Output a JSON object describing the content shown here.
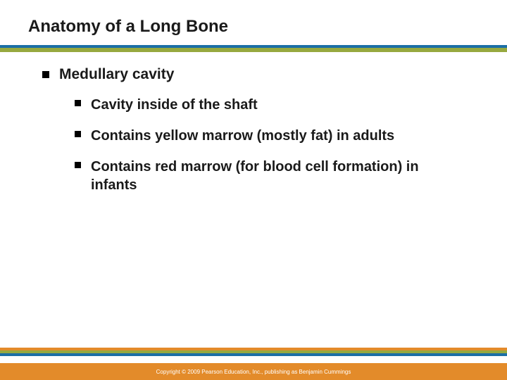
{
  "title": "Anatomy of a Long Bone",
  "title_underline": {
    "top_color": "#1b6fa6",
    "bottom_color": "#97a93f"
  },
  "bullets": {
    "level1": {
      "text": "Medullary cavity",
      "marker_color": "#000000"
    },
    "level2": [
      {
        "text": "Cavity inside of the shaft"
      },
      {
        "text": "Contains yellow marrow (mostly fat) in adults"
      },
      {
        "text": "Contains red marrow (for blood cell formation) in infants"
      }
    ]
  },
  "text_color": "#1a1a1a",
  "fontsize": {
    "title": 24,
    "l1": 21,
    "l2": 20
  },
  "footer_stripes": [
    "#e38b2a",
    "#97a93f",
    "#1b6fa6"
  ],
  "footer": {
    "bg": "#e38b2a",
    "text": "Copyright © 2009 Pearson Education, Inc., publishing as Benjamin Cummings"
  },
  "background_color": "#ffffff"
}
